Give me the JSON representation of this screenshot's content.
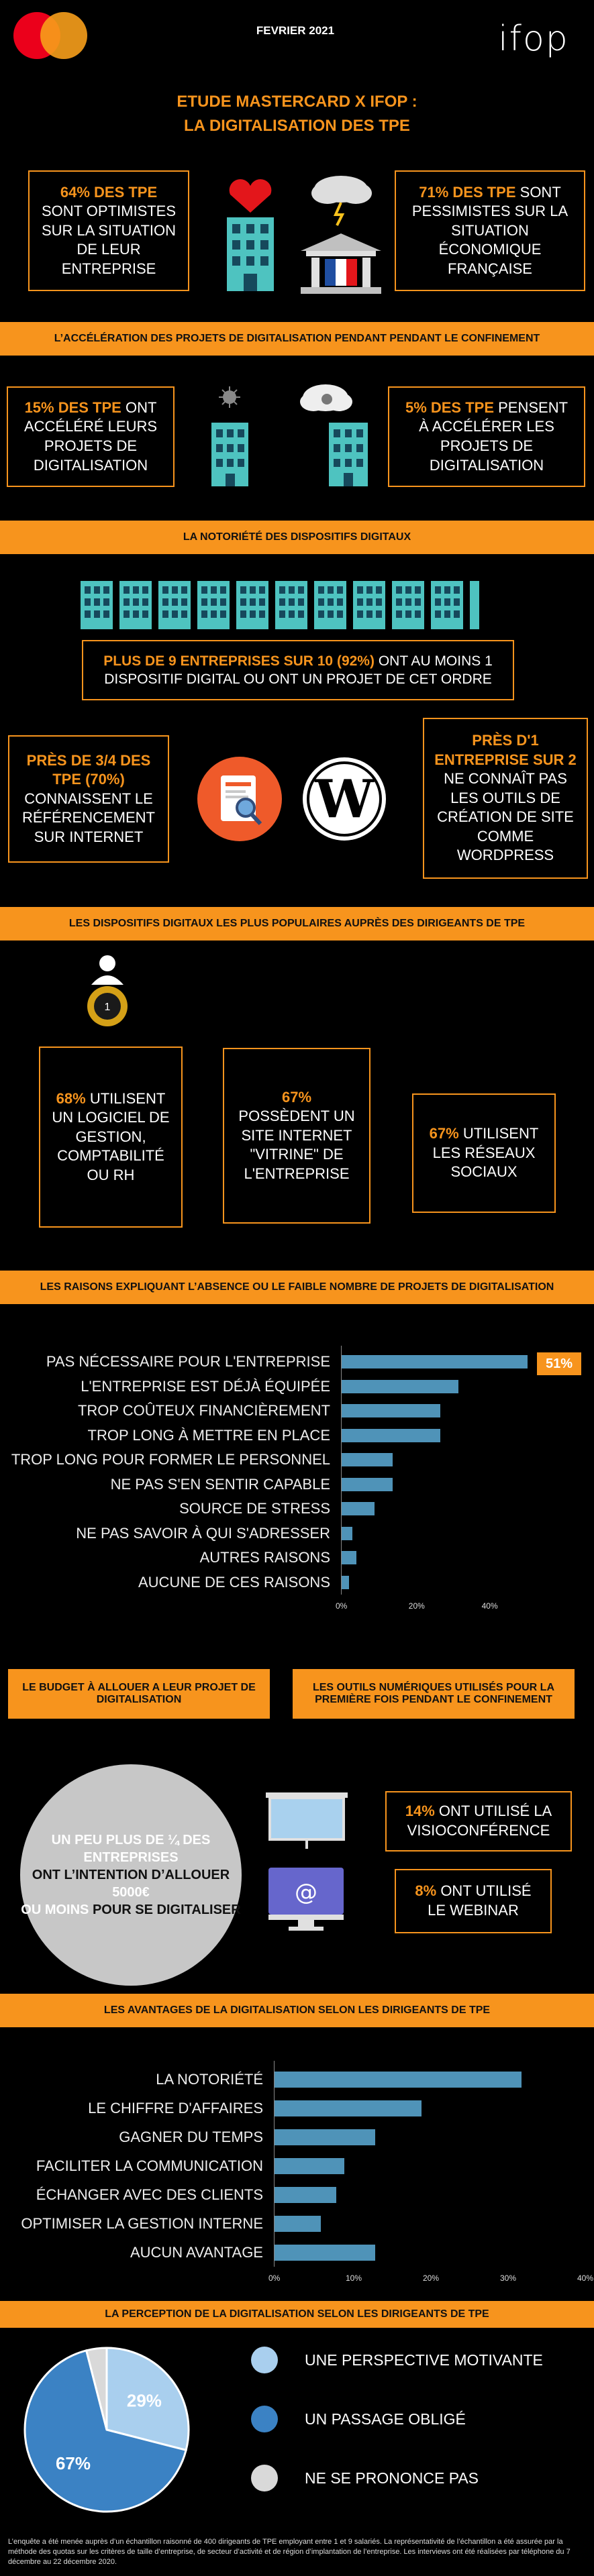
{
  "header": {
    "date": "FEVRIER 2021",
    "brand_left": "mastercard",
    "brand_right": "ifop",
    "title_line1": "ETUDE MASTERCARD X IFOP :",
    "title_line2": "LA DIGITALISATION DES TPE"
  },
  "top_stats": {
    "left": {
      "highlight": "64% DES TPE",
      "text": "SONT OPTIMISTES SUR LA SITUATION DE LEUR ENTREPRISE"
    },
    "right": {
      "highlight": "71% DES TPE",
      "text": "SONT PESSIMISTES SUR LA SITUATION ÉCONOMIQUE FRANÇAISE"
    }
  },
  "section1": {
    "title": "L’ACCÉLÉRATION DES PROJETS DE DIGITALISATION PENDANT PENDANT LE CONFINEMENT",
    "left": {
      "highlight": "15% DES TPE",
      "text": "ONT ACCÉLÉRÉ LEURS PROJETS DE DIGITALISATION"
    },
    "right": {
      "highlight": "5% DES TPE",
      "text": "PENSENT À ACCÉLÉRER LES PROJETS DE DIGITALISATION"
    }
  },
  "section2": {
    "title": "LA NOTORIÉTÉ DES DISPOSITIFS DIGITAUX",
    "main": {
      "highlight": "PLUS DE 9 ENTREPRISES SUR 10 (92%)",
      "text": "ONT AU MOINS 1 DISPOSITIF DIGITAL OU ONT UN PROJET DE CET ORDRE"
    },
    "left": {
      "highlight": "PRÈS DE 3/4 DES TPE (70%)",
      "text": "CONNAISSENT LE RÉFÉRENCEMENT SUR INTERNET"
    },
    "right": {
      "highlight": "PRÈS D'1 ENTREPRISE SUR 2",
      "text": "NE CONNAÎT PAS LES OUTILS DE CRÉATION DE SITE COMME WORDPRESS"
    }
  },
  "section3": {
    "title": "LES DISPOSITIFS DIGITAUX LES PLUS POPULAIRES AUPRÈS DES DIRIGEANTS DE TPE",
    "medal": "1",
    "stats": [
      {
        "highlight": "68%",
        "text": "UTILISENT UN LOGICIEL DE GESTION, COMPTABILITÉ OU RH"
      },
      {
        "highlight": "67%",
        "text": "POSSÈDENT UN SITE INTERNET \"VITRINE\" DE L'ENTREPRISE"
      },
      {
        "highlight": "67%",
        "text": "UTILISENT LES RÉSEAUX SOCIAUX"
      }
    ]
  },
  "section4": {
    "title": "LES RAISONS EXPLIQUANT L’ABSENCE OU LE FAIBLE NOMBRE DE PROJETS DE DIGITALISATION",
    "callout": "51%"
  },
  "section5": {
    "budget_title": "LE BUDGET À ALLOUER A LEUR PROJET DE DIGITALISATION",
    "tools_title": "LES OUTILS NUMÉRIQUES UTILISÉS POUR LA PREMIÈRE FOIS PENDANT LE CONFINEMENT",
    "circle_1": "UN PEU PLUS DE ¼ DES ENTREPRISES",
    "circle_2": "ONT L’INTENTION D’ALLOUER",
    "circle_3": "5000€",
    "circle_4": "OU MOINS",
    "circle_5": "POUR SE DIGITALISER",
    "visio": {
      "highlight": "14%",
      "text": "ONT UTILISÉ LA VISIOCONFÉRENCE"
    },
    "webinar": {
      "highlight": "8%",
      "text": "ONT UTILISÉ LE WEBINAR"
    },
    "at_symbol": "@"
  },
  "section6": {
    "title": "LES AVANTAGES DE LA DIGITALISATION SELON LES DIRIGEANTS DE TPE"
  },
  "section7": {
    "title": "LA PERCEPTION DE LA DIGITALISATION SELON LES DIRIGEANTS DE TPE"
  },
  "footer": "L’enquête a été menée auprès d’un échantillon raisonné de 400 dirigeants de TPE employant entre 1 et 9 salariés. La représentativité de l’échantillon a été assurée par la méthode des quotas sur les critères de taille d’entreprise, de secteur d’activité et de région d’implantation de l’entreprise. Les interviews ont été réalisées par téléphone du 7 décembre au 22 décembre 2020.",
  "colors": {
    "accent": "#f7941d",
    "bar": "#4f93b8",
    "pie_dark": "#3b82c4",
    "pie_light": "#a9cfee",
    "pie_grey": "#d9d9d9"
  },
  "chart_data": [
    {
      "type": "bar",
      "orientation": "horizontal",
      "categories": [
        "PAS NÉCESSAIRE POUR L'ENTREPRISE",
        "L'ENTREPRISE EST DÉJÀ ÉQUIPÉE",
        "TROP COÛTEUX FINANCIÈREMENT",
        "TROP LONG À METTRE EN PLACE",
        "TROP LONG POUR FORMER LE PERSONNEL",
        "NE PAS S'EN SENTIR CAPABLE",
        "SOURCE DE STRESS",
        "NE PAS SAVOIR À QUI S'ADRESSER",
        "AUTRES RAISONS",
        "AUCUNE DE CES RAISONS"
      ],
      "values": [
        51,
        32,
        27,
        27,
        14,
        14,
        9,
        3,
        4,
        2
      ],
      "xlim": [
        0,
        50
      ],
      "xticks": [
        "0%",
        "20%",
        "40%"
      ]
    },
    {
      "type": "bar",
      "orientation": "horizontal",
      "categories": [
        "LA NOTORIÉTÉ",
        "LE CHIFFRE D'AFFAIRES",
        "GAGNER DU TEMPS",
        "FACILITER LA COMMUNICATION",
        "ÉCHANGER AVEC DES CLIENTS",
        "OPTIMISER LA GESTION INTERNE",
        "AUCUN AVANTAGE"
      ],
      "values": [
        32,
        19,
        13,
        9,
        8,
        6,
        13
      ],
      "xlim": [
        0,
        40
      ],
      "xticks": [
        "0%",
        "10%",
        "20%",
        "30%",
        "40%"
      ]
    },
    {
      "type": "pie",
      "labels": [
        "UNE PERSPECTIVE MOTIVANTE",
        "UN PASSAGE OBLIGÉ",
        "NE SE PRONONCE PAS"
      ],
      "values": [
        29,
        67,
        4
      ],
      "value_labels": [
        "29%",
        "67%",
        ""
      ]
    }
  ]
}
